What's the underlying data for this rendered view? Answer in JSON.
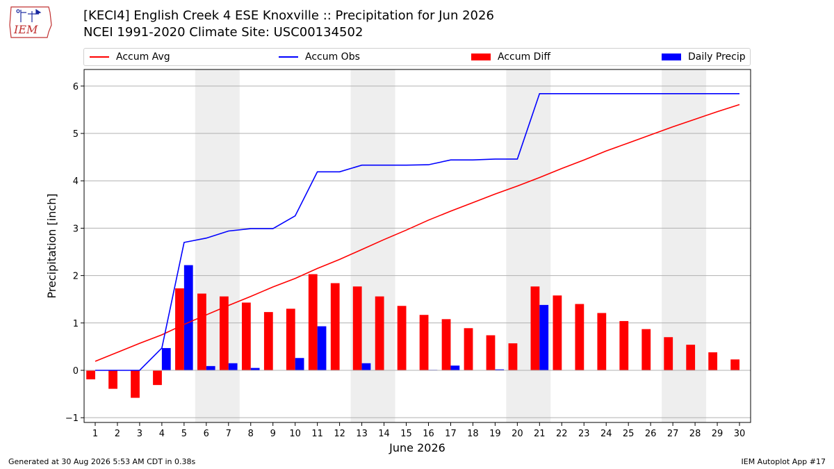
{
  "header": {
    "title_line1": "[KECI4] English Creek 4 ESE Knoxville :: Precipitation for Jun 2026",
    "title_line2": "NCEI 1991-2020 Climate Site: USC00134502",
    "logo_text": "IEM"
  },
  "footer": {
    "generated": "Generated at 30 Aug 2026 5:53 AM CDT in 0.38s",
    "app": "IEM Autoplot App #17"
  },
  "colors": {
    "avg": "#ff0000",
    "obs": "#0000ff",
    "diff": "#ff0000",
    "daily": "#0000ff",
    "weekend_band": "#eeeeee",
    "grid": "#b0b0b0"
  },
  "legend": [
    {
      "label": "Accum Avg",
      "kind": "line",
      "color": "#ff0000"
    },
    {
      "label": "Accum Obs",
      "kind": "line",
      "color": "#0000ff"
    },
    {
      "label": "Accum Diff",
      "kind": "box",
      "color": "#ff0000"
    },
    {
      "label": "Daily Precip",
      "kind": "box",
      "color": "#0000ff"
    }
  ],
  "chart_data": {
    "type": "bar",
    "title": "[KECI4] English Creek 4 ESE Knoxville :: Precipitation for Jun 2026",
    "xlabel": "June 2026",
    "ylabel": "Precipitation [inch]",
    "x": [
      1,
      2,
      3,
      4,
      5,
      6,
      7,
      8,
      9,
      10,
      11,
      12,
      13,
      14,
      15,
      16,
      17,
      18,
      19,
      20,
      21,
      22,
      23,
      24,
      25,
      26,
      27,
      28,
      29,
      30
    ],
    "xlim": [
      0.5,
      30.5
    ],
    "ylim": [
      -1.1,
      6.35
    ],
    "yticks": [
      -1,
      0,
      1,
      2,
      3,
      4,
      5,
      6
    ],
    "grid": true,
    "legend_position": "top",
    "weekend_bands": [
      [
        6,
        7
      ],
      [
        13,
        14
      ],
      [
        20,
        21
      ],
      [
        27,
        28
      ]
    ],
    "series": [
      {
        "name": "Accum Avg",
        "type": "line",
        "values": [
          0.19,
          0.38,
          0.57,
          0.75,
          0.97,
          1.17,
          1.37,
          1.56,
          1.76,
          1.94,
          2.15,
          2.34,
          2.55,
          2.76,
          2.96,
          3.17,
          3.36,
          3.54,
          3.72,
          3.89,
          4.07,
          4.26,
          4.44,
          4.63,
          4.8,
          4.97,
          5.14,
          5.3,
          5.46,
          5.61
        ]
      },
      {
        "name": "Accum Obs",
        "type": "line",
        "values": [
          0,
          0,
          0,
          0.47,
          2.7,
          2.79,
          2.94,
          2.99,
          2.99,
          3.26,
          4.19,
          4.19,
          4.33,
          4.33,
          4.33,
          4.34,
          4.44,
          4.44,
          4.46,
          4.46,
          5.84,
          5.84,
          5.84,
          5.84,
          5.84,
          5.84,
          5.84,
          5.84,
          5.84,
          5.84
        ]
      },
      {
        "name": "Accum Diff",
        "type": "bar",
        "values": [
          -0.19,
          -0.39,
          -0.58,
          -0.31,
          1.73,
          1.62,
          1.56,
          1.43,
          1.23,
          1.3,
          2.03,
          1.84,
          1.77,
          1.56,
          1.36,
          1.17,
          1.08,
          0.89,
          0.74,
          0.57,
          1.77,
          1.58,
          1.4,
          1.21,
          1.04,
          0.87,
          0.7,
          0.54,
          0.38,
          0.23
        ]
      },
      {
        "name": "Daily Precip",
        "type": "bar",
        "values": [
          0,
          0,
          0,
          0.47,
          2.22,
          0.09,
          0.15,
          0.05,
          0,
          0.26,
          0.93,
          0,
          0.15,
          0,
          0,
          0.01,
          0.1,
          0,
          0.02,
          0,
          1.38,
          0,
          0,
          0,
          0,
          0,
          0,
          0,
          0,
          0
        ]
      }
    ]
  }
}
